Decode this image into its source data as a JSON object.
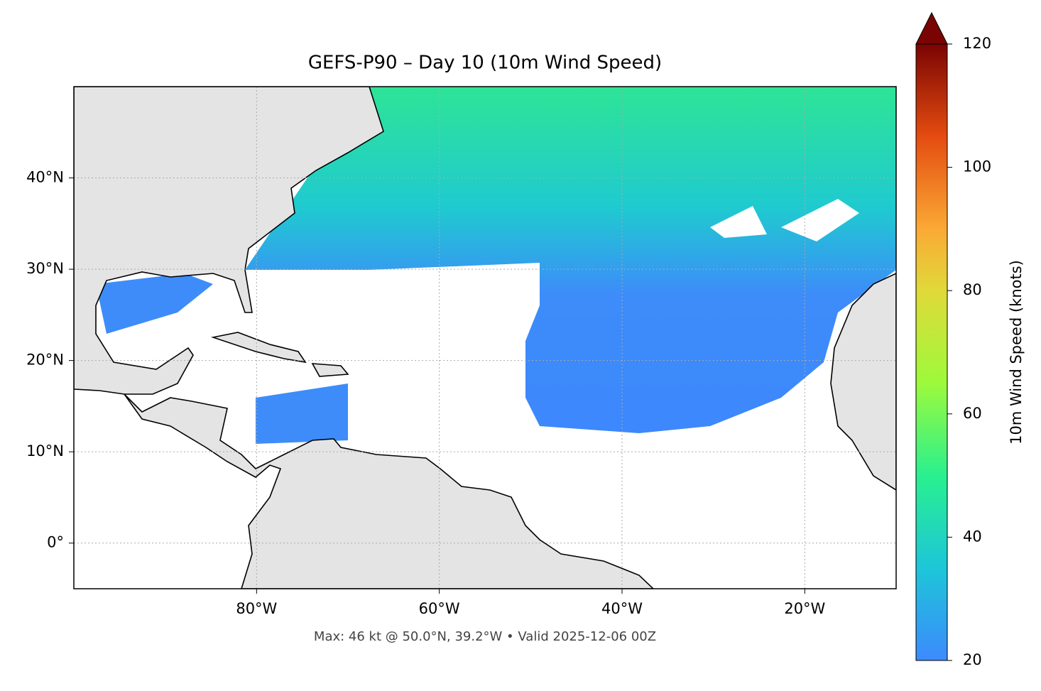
{
  "map": {
    "title": "GEFS-P90 – Day 10 (10m Wind Speed)",
    "footnote": "Max: 46 kt @ 50.0°N, 39.2°W • Valid 2025-12-06 00Z",
    "xlim": [
      -100,
      -10
    ],
    "ylim": [
      -5,
      50
    ],
    "xticks": [
      {
        "value": -80,
        "label": "80°W"
      },
      {
        "value": -60,
        "label": "60°W"
      },
      {
        "value": -40,
        "label": "40°W"
      },
      {
        "value": -20,
        "label": "20°W"
      }
    ],
    "yticks": [
      {
        "value": 0,
        "label": "0°"
      },
      {
        "value": 10,
        "label": "10°N"
      },
      {
        "value": 20,
        "label": "20°N"
      },
      {
        "value": 30,
        "label": "30°N"
      },
      {
        "value": 40,
        "label": "40°N"
      }
    ],
    "grid": true,
    "colorbar": {
      "label": "10m Wind Speed (knots)",
      "lim": [
        20,
        120
      ],
      "ticks": [
        20,
        40,
        60,
        80,
        100,
        120
      ]
    }
  }
}
